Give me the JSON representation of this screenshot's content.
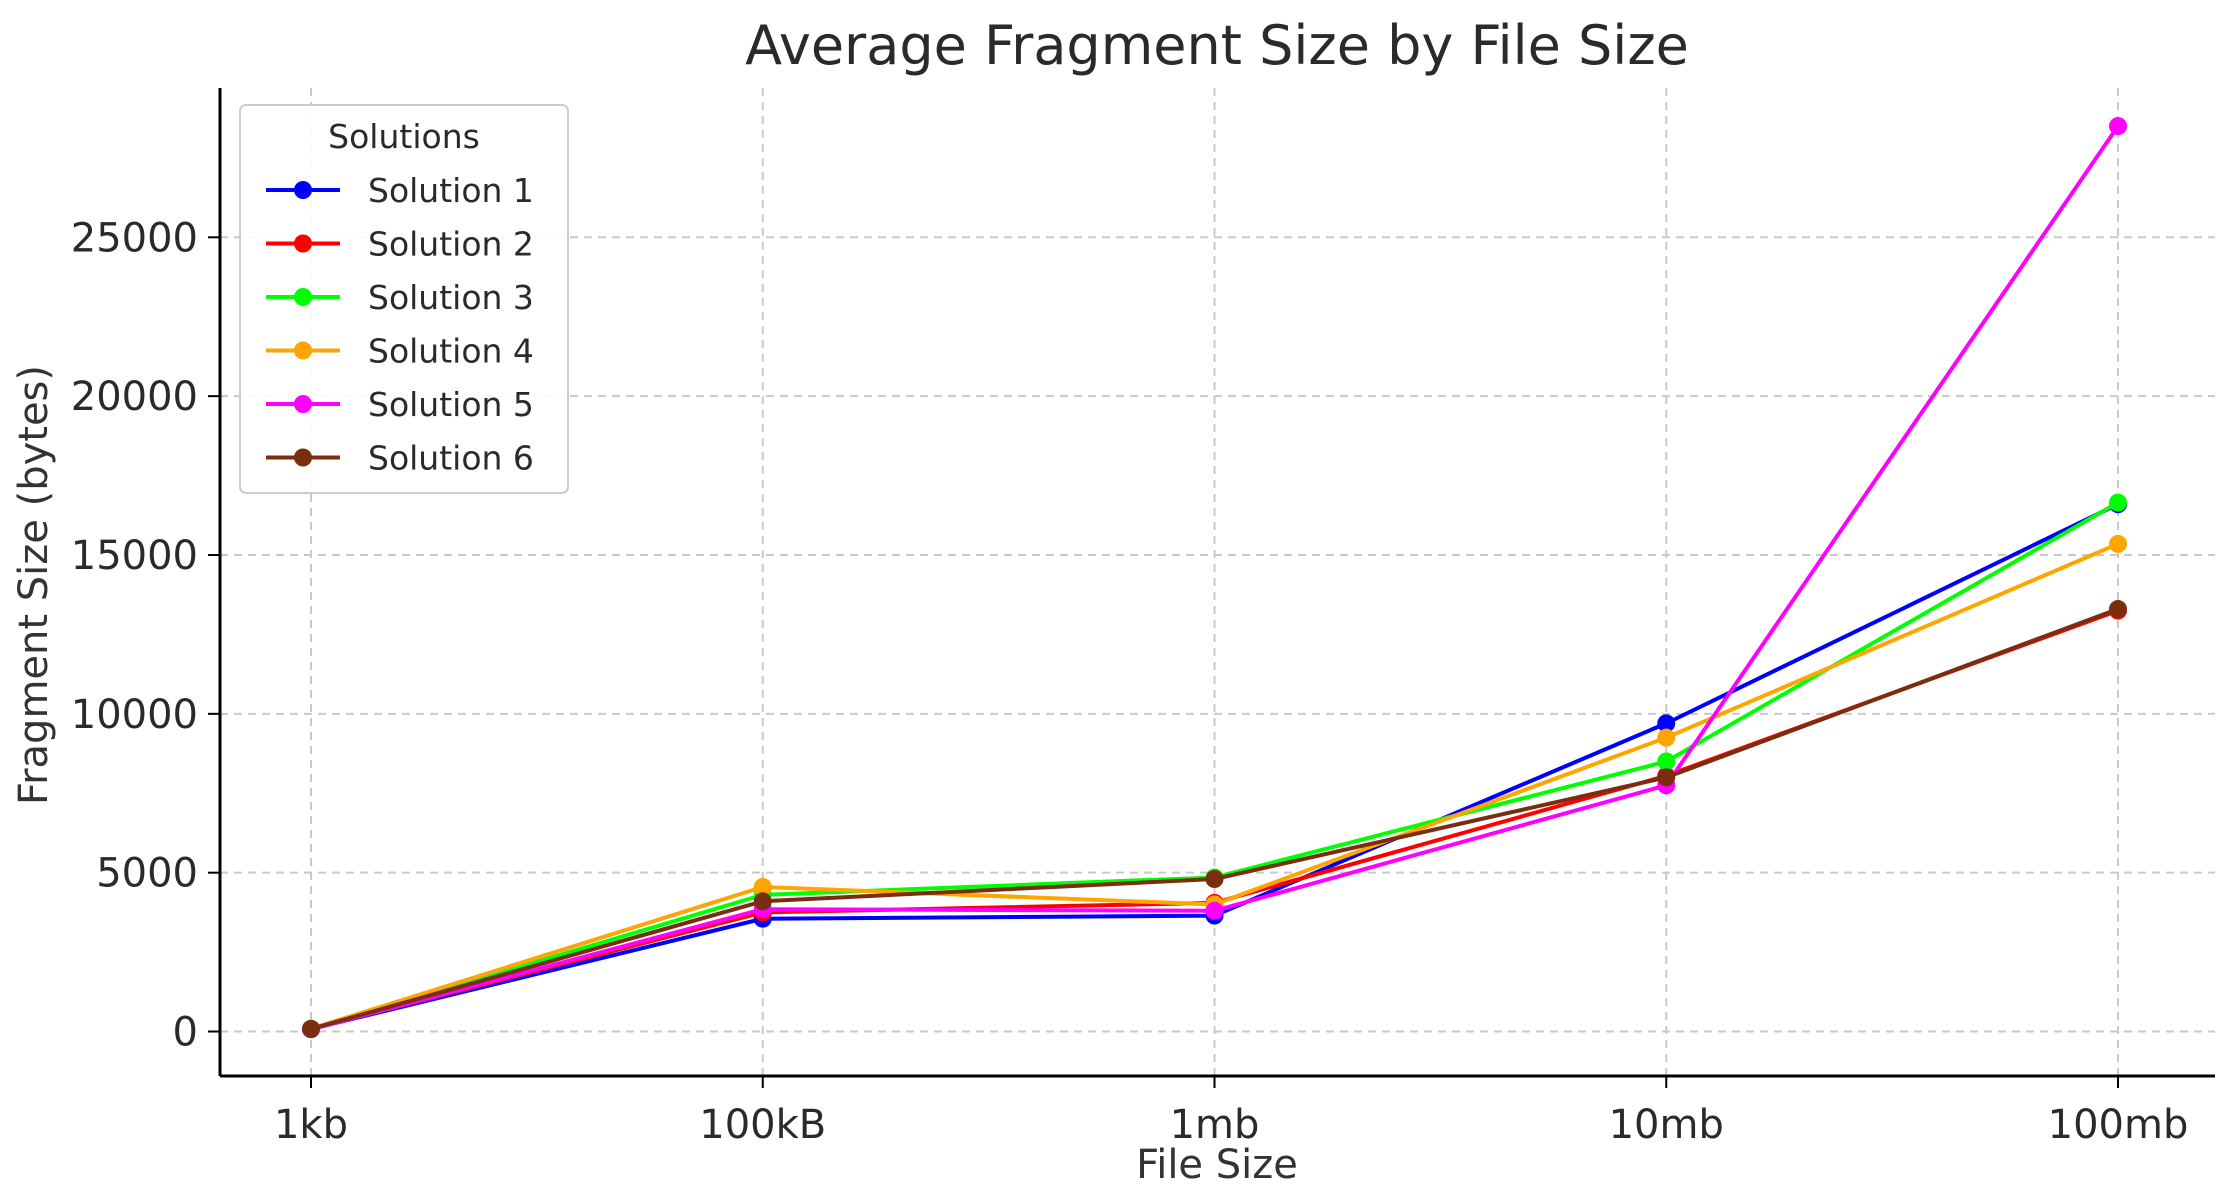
{
  "chart_data": {
    "type": "line",
    "title": "Average Fragment Size by File Size",
    "xlabel": "File Size",
    "ylabel": "Fragment Size (bytes)",
    "categories": [
      "1kb",
      "100kB",
      "1mb",
      "10mb",
      "100mb"
    ],
    "ylim": [
      -1400,
      29700
    ],
    "yticks": [
      0,
      5000,
      10000,
      15000,
      20000,
      25000
    ],
    "grid": true,
    "legend": {
      "title": "Solutions",
      "placement": "upper-left"
    },
    "series": [
      {
        "name": "Solution 1",
        "color": "#0000ff",
        "values": [
          80,
          3550,
          3650,
          9700,
          16600
        ]
      },
      {
        "name": "Solution 2",
        "color": "#ff0000",
        "values": [
          80,
          3750,
          4050,
          8050,
          13250
        ]
      },
      {
        "name": "Solution 3",
        "color": "#00ff00",
        "values": [
          90,
          4300,
          4850,
          8500,
          16650
        ]
      },
      {
        "name": "Solution 4",
        "color": "#ffa500",
        "values": [
          90,
          4550,
          4000,
          9250,
          15350
        ]
      },
      {
        "name": "Solution 5",
        "color": "#ff00ff",
        "values": [
          70,
          3850,
          3800,
          7750,
          28500
        ]
      },
      {
        "name": "Solution 6",
        "color": "#7b2d0f",
        "values": [
          80,
          4100,
          4800,
          8000,
          13300
        ]
      }
    ]
  }
}
